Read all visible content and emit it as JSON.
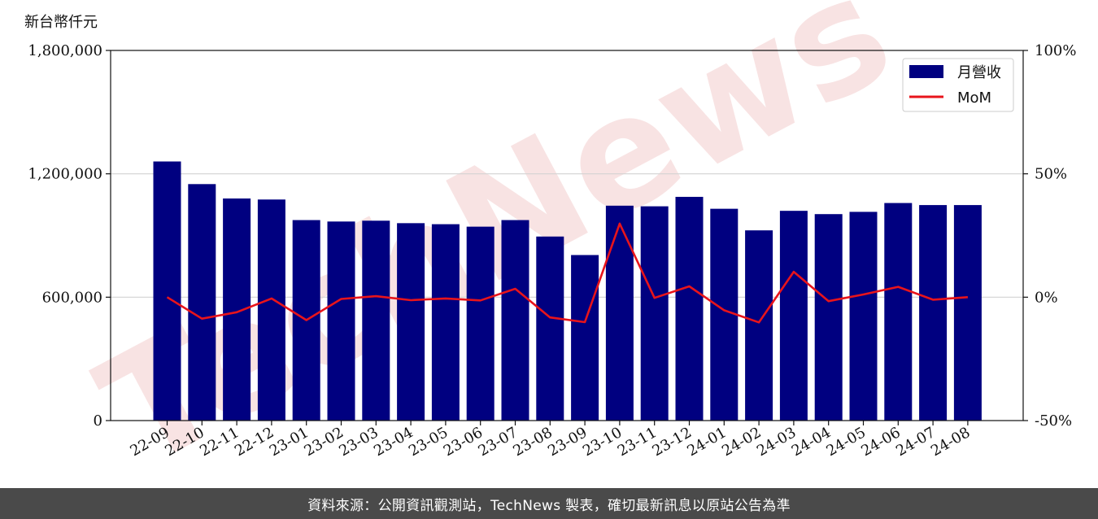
{
  "y_unit_label": "新台幣仟元",
  "footer_text": "資料來源：公開資訊觀測站，TechNews 製表，確切最新訊息以原站公告為準",
  "watermark_text": "TechNews",
  "colors": {
    "bar": "#000080",
    "line": "#e8141b",
    "grid": "#d3d3d3",
    "footer_bg": "#4a4a4a",
    "watermark": "#f2cccc"
  },
  "chart_data": {
    "type": "bar",
    "categories": [
      "22-09",
      "22-10",
      "22-11",
      "22-12",
      "23-01",
      "23-02",
      "23-03",
      "23-04",
      "23-05",
      "23-06",
      "23-07",
      "23-08",
      "23-09",
      "23-10",
      "23-11",
      "23-12",
      "24-01",
      "24-02",
      "24-03",
      "24-04",
      "24-05",
      "24-06",
      "24-07",
      "24-08"
    ],
    "series": [
      {
        "name": "月營收",
        "type": "bar",
        "axis": "left",
        "values": [
          1260000,
          1150000,
          1080000,
          1075000,
          975000,
          968000,
          972000,
          960000,
          955000,
          943000,
          975000,
          895000,
          805000,
          1045000,
          1042000,
          1088000,
          1030000,
          925000,
          1020000,
          1004000,
          1015000,
          1058000,
          1048000,
          1048000
        ]
      },
      {
        "name": "MoM",
        "type": "line",
        "axis": "right",
        "values": [
          0.0,
          -8.7,
          -6.1,
          -0.5,
          -9.3,
          -0.7,
          0.4,
          -1.2,
          -0.5,
          -1.3,
          3.4,
          -8.2,
          -10.1,
          29.8,
          -0.3,
          4.4,
          -5.3,
          -10.2,
          10.3,
          -1.6,
          1.1,
          4.2,
          -1.0,
          0.0
        ]
      }
    ],
    "y_left_ticks": [
      "0",
      "600,000",
      "1,200,000",
      "1,800,000"
    ],
    "y_left_tick_values": [
      0,
      600000,
      1200000,
      1800000
    ],
    "y_right_ticks": [
      "-50%",
      "0%",
      "50%",
      "100%"
    ],
    "y_right_tick_values": [
      -50,
      0,
      50,
      100
    ],
    "ylim_left": [
      0,
      1800000
    ],
    "ylim_right": [
      -50,
      100
    ],
    "legend": [
      "月營收",
      "MoM"
    ],
    "legend_position": "top-right",
    "grid": "horizontal"
  }
}
